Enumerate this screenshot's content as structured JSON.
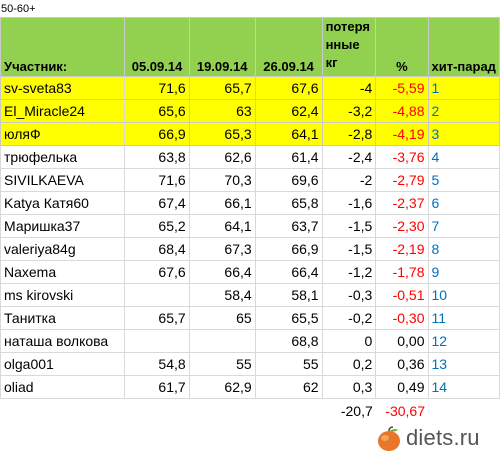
{
  "corner_label": "50-60+",
  "header": {
    "participant": "Участник:",
    "dates": [
      "05.09.14",
      "19.09.14",
      "26.09.14"
    ],
    "loss_lines": [
      "потеря",
      "нные",
      "кг"
    ],
    "pct": "%",
    "hitparade": "хит-парад"
  },
  "rows": [
    {
      "name": "sv-sveta83",
      "d1": "71,6",
      "d2": "65,7",
      "d3": "67,6",
      "loss": "-4",
      "pct": "-5,59",
      "rank": "1",
      "highlight": true
    },
    {
      "name": "El_Miracle24",
      "d1": "65,6",
      "d2": "63",
      "d3": "62,4",
      "loss": "-3,2",
      "pct": "-4,88",
      "rank": "2",
      "highlight": true
    },
    {
      "name": "юляФ",
      "d1": "66,9",
      "d2": "65,3",
      "d3": "64,1",
      "loss": "-2,8",
      "pct": "-4,19",
      "rank": "3",
      "highlight": true
    },
    {
      "name": "трюфелька",
      "d1": "63,8",
      "d2": "62,6",
      "d3": "61,4",
      "loss": "-2,4",
      "pct": "-3,76",
      "rank": "4",
      "highlight": false
    },
    {
      "name": "SIVILKAEVA",
      "d1": "71,6",
      "d2": "70,3",
      "d3": "69,6",
      "loss": "-2",
      "pct": "-2,79",
      "rank": "5",
      "highlight": false
    },
    {
      "name": "Katya Катя60",
      "d1": "67,4",
      "d2": "66,1",
      "d3": "65,8",
      "loss": "-1,6",
      "pct": "-2,37",
      "rank": "6",
      "highlight": false
    },
    {
      "name": "Маришка37",
      "d1": "65,2",
      "d2": "64,1",
      "d3": "63,7",
      "loss": "-1,5",
      "pct": "-2,30",
      "rank": "7",
      "highlight": false
    },
    {
      "name": "valeriya84g",
      "d1": "68,4",
      "d2": "67,3",
      "d3": "66,9",
      "loss": "-1,5",
      "pct": "-2,19",
      "rank": "8",
      "highlight": false
    },
    {
      "name": "Naxema",
      "d1": "67,6",
      "d2": "66,4",
      "d3": "66,4",
      "loss": "-1,2",
      "pct": "-1,78",
      "rank": "9",
      "highlight": false
    },
    {
      "name": "ms kirovski",
      "d1": "",
      "d2": "58,4",
      "d3": "58,1",
      "loss": "-0,3",
      "pct": "-0,51",
      "rank": "10",
      "highlight": false
    },
    {
      "name": "Танитка",
      "d1": "65,7",
      "d2": "65",
      "d3": "65,5",
      "loss": "-0,2",
      "pct": "-0,30",
      "rank": "11",
      "highlight": false
    },
    {
      "name": "наташа волкова",
      "d1": "",
      "d2": "",
      "d3": "68,8",
      "loss": "0",
      "pct": "0,00",
      "rank": "12",
      "highlight": false
    },
    {
      "name": "olga001",
      "d1": "54,8",
      "d2": "55",
      "d3": "55",
      "loss": "0,2",
      "pct": "0,36",
      "rank": "13",
      "highlight": false
    },
    {
      "name": "oliad",
      "d1": "61,7",
      "d2": "62,9",
      "d3": "62",
      "loss": "0,3",
      "pct": "0,49",
      "rank": "14",
      "highlight": false
    }
  ],
  "totals": {
    "loss": "-20,7",
    "pct": "-30,67"
  },
  "watermark": {
    "site": "diets.ru"
  },
  "colors": {
    "header_bg": "#92d050",
    "highlight_bg": "#ffff00",
    "negative": "#ff0000",
    "rank": "#0070c0"
  }
}
